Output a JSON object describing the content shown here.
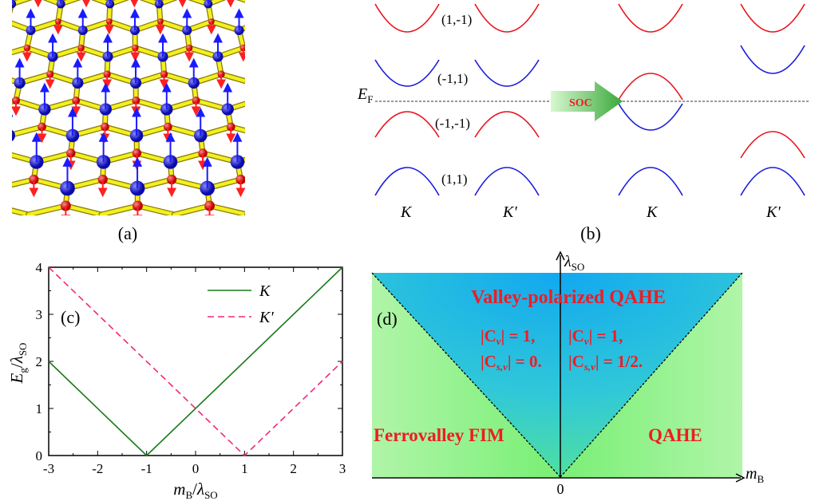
{
  "panel_a": {
    "label": "(a)"
  },
  "panel_b": {
    "label": "(b)",
    "fermi_label": "E",
    "fermi_sub": "F",
    "soc_label": "SOC",
    "band_labels": [
      "(1,-1)",
      "(-1,1)",
      "(-1,-1)",
      "(1,1)"
    ],
    "valley_labels": [
      "K",
      "K'",
      "K",
      "K'"
    ],
    "colors": {
      "red": "#e8141e",
      "blue": "#1a1adc"
    }
  },
  "panel_d": {
    "label": "(d)",
    "y_axis": "λ",
    "y_axis_sub": "SO",
    "x_axis": "m",
    "x_axis_sub": "B",
    "origin": "0",
    "title": "Valley-polarized QAHE",
    "left_c1": "|C",
    "left_c1_sub": "v",
    "left_c1_rest": "| = 1,",
    "left_c2": "|C",
    "left_c2_sub": "s,v",
    "left_c2_rest": "| = 0.",
    "right_c1": "|C",
    "right_c1_sub": "v",
    "right_c1_rest": "| = 1,",
    "right_c2": "|C",
    "right_c2_sub": "s,v",
    "right_c2_rest": "| = 1/2.",
    "region_left": "Ferrovalley FIM",
    "region_right": "QAHE"
  },
  "chart_data": {
    "type": "line",
    "panel": "(c)",
    "xlabel": "m_B/λ_SO",
    "ylabel": "E_g/λ_SO",
    "xlim": [
      -3,
      3
    ],
    "ylim": [
      0,
      4
    ],
    "xticks": [
      "-3",
      "-2",
      "-1",
      "0",
      "1",
      "2",
      "3"
    ],
    "yticks": [
      "0",
      "1",
      "2",
      "3",
      "4"
    ],
    "legend_placement": "top-right",
    "series": [
      {
        "name": "K",
        "style": "solid",
        "color": "#1a7a1a",
        "x": [
          -3,
          -1,
          3
        ],
        "y": [
          2,
          0,
          4
        ]
      },
      {
        "name": "K'",
        "style": "dashed",
        "color": "#f0287a",
        "x": [
          -3,
          1,
          3
        ],
        "y": [
          4,
          0,
          2
        ]
      }
    ]
  }
}
